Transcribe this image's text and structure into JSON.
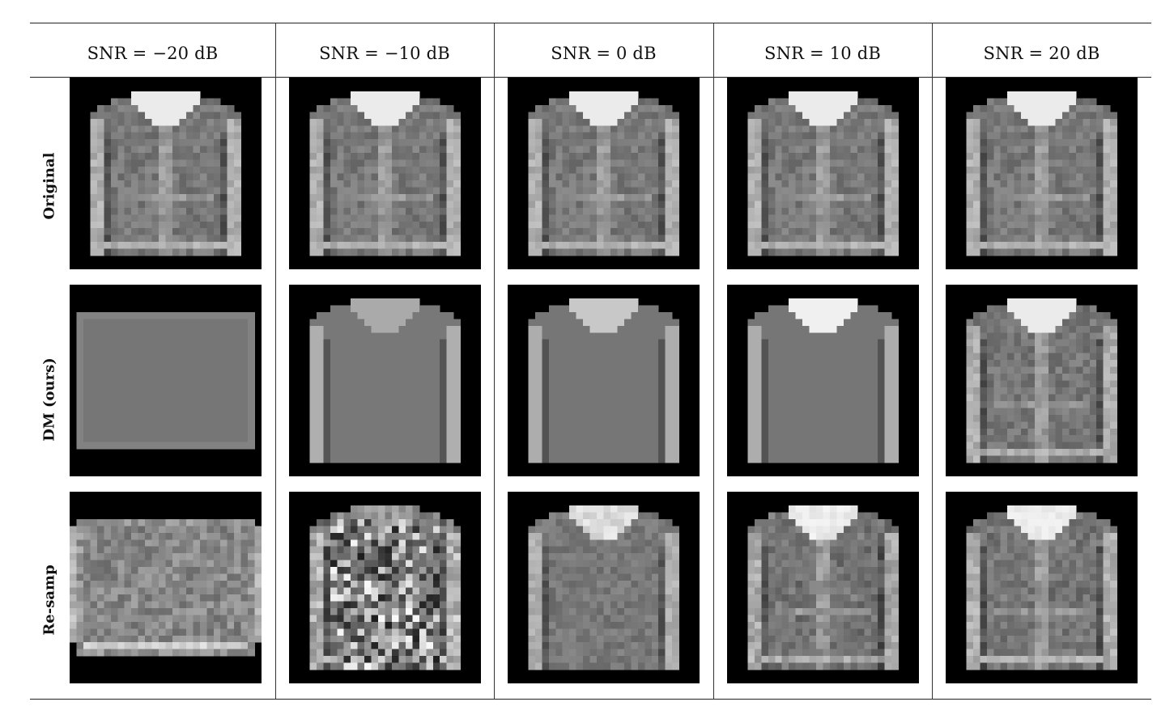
{
  "table": {
    "columns": [
      "SNR = −20 dB",
      "SNR = −10 dB",
      "SNR = 0 dB",
      "SNR = 10 dB",
      "SNR = 20 dB"
    ],
    "rows": [
      "Original",
      "DM (ours)",
      "Re-samp"
    ]
  },
  "cells": {
    "original": [
      "jacket-detailed",
      "jacket-detailed",
      "jacket-detailed",
      "jacket-detailed",
      "jacket-detailed"
    ],
    "dm": [
      "rectangle-bag",
      "plain-pullover",
      "pullover-collar",
      "pullover-bright-collar",
      "jacket-mostly-recovered"
    ],
    "resamp": [
      "noisy-bag",
      "heavily-noisy-jacket",
      "noisy-pullover",
      "jacket-faint",
      "jacket-detailed-noisy"
    ]
  },
  "colors": {
    "background": "#000000",
    "garment_mid": "#7a7a7a",
    "garment_light": "#c9c9c9",
    "collar_white": "#f2f2f2",
    "rule": "#222222"
  }
}
